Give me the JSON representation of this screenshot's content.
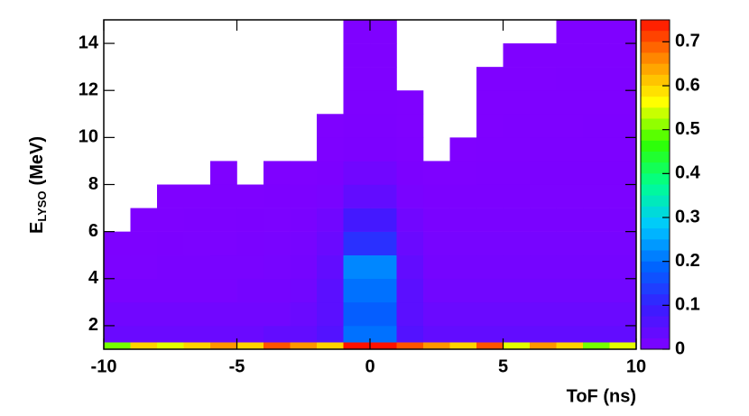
{
  "chart_data": {
    "type": "heatmap",
    "xlabel": "ToF (ns)",
    "ylabel": "E",
    "ylabel_sub": "LYSO",
    "ylabel_unit": "(MeV)",
    "xlim": [
      -10,
      10
    ],
    "ylim": [
      1,
      15
    ],
    "xticks": [
      -10,
      -5,
      0,
      5,
      10
    ],
    "yticks": [
      2,
      4,
      6,
      8,
      10,
      12,
      14
    ],
    "zlim": [
      0,
      0.75
    ],
    "zticks": [
      0,
      0.1,
      0.2,
      0.3,
      0.4,
      0.5,
      0.6,
      0.7
    ],
    "colors": [
      "#8000ff",
      "#3a1cff",
      "#0064ff",
      "#00c8ff",
      "#00ff90",
      "#30ff00",
      "#ffff00",
      "#ff9000",
      "#ff1000"
    ],
    "xbins": [
      -10,
      -9,
      -8,
      -7,
      -6,
      -5,
      -4,
      -3,
      -2,
      -1,
      0,
      1,
      2,
      3,
      4,
      5,
      6,
      7,
      8,
      9,
      10
    ],
    "ybins": [
      1,
      1.3,
      2,
      3,
      4,
      5,
      6,
      7,
      8,
      9,
      10,
      11,
      12,
      13,
      14,
      15
    ],
    "values": [
      [
        0.5,
        0.6,
        0.55,
        0.6,
        0.65,
        0.6,
        0.7,
        0.65,
        0.6,
        0.75,
        0.75,
        0.7,
        0.65,
        0.6,
        0.7,
        0.55,
        0.65,
        0.6,
        0.5,
        0.55
      ],
      [
        0.03,
        0.03,
        0.03,
        0.03,
        0.03,
        0.03,
        0.04,
        0.04,
        0.06,
        0.2,
        0.2,
        0.06,
        0.04,
        0.04,
        0.04,
        0.04,
        0.04,
        0.04,
        0.04,
        0.04
      ],
      [
        0.02,
        0.02,
        0.02,
        0.02,
        0.02,
        0.02,
        0.02,
        0.03,
        0.05,
        0.18,
        0.18,
        0.05,
        0.03,
        0.03,
        0.03,
        0.03,
        0.03,
        0.03,
        0.03,
        0.03
      ],
      [
        0.01,
        0.01,
        0.01,
        0.01,
        0.01,
        0.015,
        0.015,
        0.02,
        0.05,
        0.2,
        0.2,
        0.05,
        0.02,
        0.02,
        0.02,
        0.02,
        0.02,
        0.02,
        0.02,
        0.02
      ],
      [
        0.006,
        0.006,
        0.008,
        0.008,
        0.01,
        0.01,
        0.012,
        0.015,
        0.04,
        0.22,
        0.22,
        0.04,
        0.015,
        0.015,
        0.015,
        0.015,
        0.015,
        0.015,
        0.015,
        0.015
      ],
      [
        0.004,
        0.004,
        0.005,
        0.006,
        0.006,
        0.008,
        0.01,
        0.012,
        0.03,
        0.12,
        0.12,
        0.03,
        0.012,
        0.012,
        0.012,
        0.012,
        0.012,
        0.012,
        0.012,
        0.012
      ],
      [
        null,
        0.003,
        0.003,
        0.004,
        0.004,
        0.005,
        0.006,
        0.008,
        0.02,
        0.08,
        0.08,
        0.02,
        0.008,
        0.008,
        0.008,
        0.008,
        0.008,
        0.008,
        0.008,
        0.008
      ],
      [
        null,
        null,
        0.002,
        0.002,
        0.003,
        0.003,
        0.004,
        0.005,
        0.01,
        0.04,
        0.04,
        0.01,
        0.005,
        0.005,
        0.005,
        0.005,
        0.006,
        0.006,
        0.006,
        0.006
      ],
      [
        null,
        null,
        null,
        null,
        0.002,
        null,
        0.002,
        0.003,
        0.005,
        0.02,
        0.02,
        0.005,
        0.003,
        0.003,
        0.004,
        0.004,
        0.005,
        0.005,
        0.005,
        0.005
      ],
      [
        null,
        null,
        null,
        null,
        null,
        null,
        null,
        null,
        0.003,
        0.005,
        0.005,
        0.003,
        null,
        0.002,
        0.003,
        0.003,
        0.004,
        0.004,
        0.004,
        0.004
      ],
      [
        null,
        null,
        null,
        null,
        null,
        null,
        null,
        null,
        0.002,
        0.004,
        0.004,
        0.002,
        null,
        null,
        0.002,
        0.003,
        0.003,
        0.003,
        0.004,
        0.004
      ],
      [
        null,
        null,
        null,
        null,
        null,
        null,
        null,
        null,
        null,
        0.003,
        0.003,
        0.002,
        null,
        null,
        0.002,
        0.002,
        0.003,
        0.003,
        0.003,
        0.003
      ],
      [
        null,
        null,
        null,
        null,
        null,
        null,
        null,
        null,
        null,
        0.002,
        0.002,
        null,
        null,
        null,
        0.002,
        0.002,
        0.002,
        0.003,
        0.003,
        0.003
      ],
      [
        null,
        null,
        null,
        null,
        null,
        null,
        null,
        null,
        null,
        0.002,
        0.002,
        null,
        null,
        null,
        null,
        0.002,
        0.002,
        0.002,
        0.002,
        0.002
      ],
      [
        null,
        null,
        null,
        null,
        null,
        null,
        null,
        null,
        null,
        0.002,
        0.002,
        null,
        null,
        null,
        null,
        null,
        null,
        0.002,
        0.002,
        0.002
      ]
    ]
  }
}
